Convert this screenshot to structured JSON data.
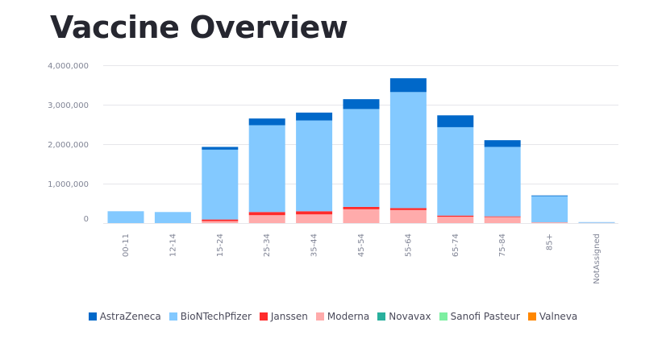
{
  "title": "Vaccine Overview",
  "chart_data": {
    "type": "stacked-bar",
    "title": "Vaccine Overview",
    "xlabel": "",
    "ylabel": "",
    "ylim": [
      0,
      4000000
    ],
    "yticks": [
      0,
      1000000,
      2000000,
      3000000,
      4000000
    ],
    "ytick_labels": [
      "0",
      "1,000,000",
      "2,000,000",
      "3,000,000",
      "4,000,000"
    ],
    "grid": true,
    "legend_position": "bottom",
    "categories": [
      "00-11",
      "12-14",
      "15-24",
      "25-34",
      "35-44",
      "45-54",
      "55-64",
      "65-74",
      "75-84",
      "85+",
      "NotAssigned"
    ],
    "series": [
      {
        "name": "Moderna",
        "color": "#ffabab",
        "values": [
          0,
          0,
          50000,
          200000,
          220000,
          350000,
          330000,
          160000,
          160000,
          20000,
          5000
        ]
      },
      {
        "name": "Janssen",
        "color": "#ff2b2b",
        "values": [
          0,
          0,
          40000,
          80000,
          80000,
          60000,
          50000,
          30000,
          10000,
          0,
          0
        ]
      },
      {
        "name": "BioNTechPfizer",
        "color": "#83c9ff",
        "values": [
          300000,
          280000,
          1770000,
          2200000,
          2300000,
          2480000,
          2940000,
          2240000,
          1760000,
          670000,
          20000
        ]
      },
      {
        "name": "AstraZeneca",
        "color": "#0068c9",
        "values": [
          0,
          0,
          70000,
          170000,
          200000,
          250000,
          350000,
          300000,
          170000,
          10000,
          0
        ]
      },
      {
        "name": "Novavax",
        "color": "#29b09d",
        "values": [
          0,
          0,
          0,
          0,
          0,
          0,
          0,
          0,
          0,
          0,
          0
        ]
      },
      {
        "name": "Sanofi Pasteur",
        "color": "#7defa1",
        "values": [
          0,
          0,
          0,
          0,
          0,
          0,
          0,
          0,
          0,
          0,
          0
        ]
      },
      {
        "name": "Valneva",
        "color": "#ff8700",
        "values": [
          0,
          0,
          0,
          0,
          0,
          0,
          0,
          0,
          0,
          0,
          0
        ]
      }
    ],
    "legend": [
      {
        "name": "AstraZeneca",
        "color": "#0068c9"
      },
      {
        "name": "BioNTechPfizer",
        "color": "#83c9ff"
      },
      {
        "name": "Janssen",
        "color": "#ff2b2b"
      },
      {
        "name": "Moderna",
        "color": "#ffabab"
      },
      {
        "name": "Novavax",
        "color": "#29b09d"
      },
      {
        "name": "Sanofi Pasteur",
        "color": "#7defa1"
      },
      {
        "name": "Valneva",
        "color": "#ff8700"
      }
    ]
  }
}
